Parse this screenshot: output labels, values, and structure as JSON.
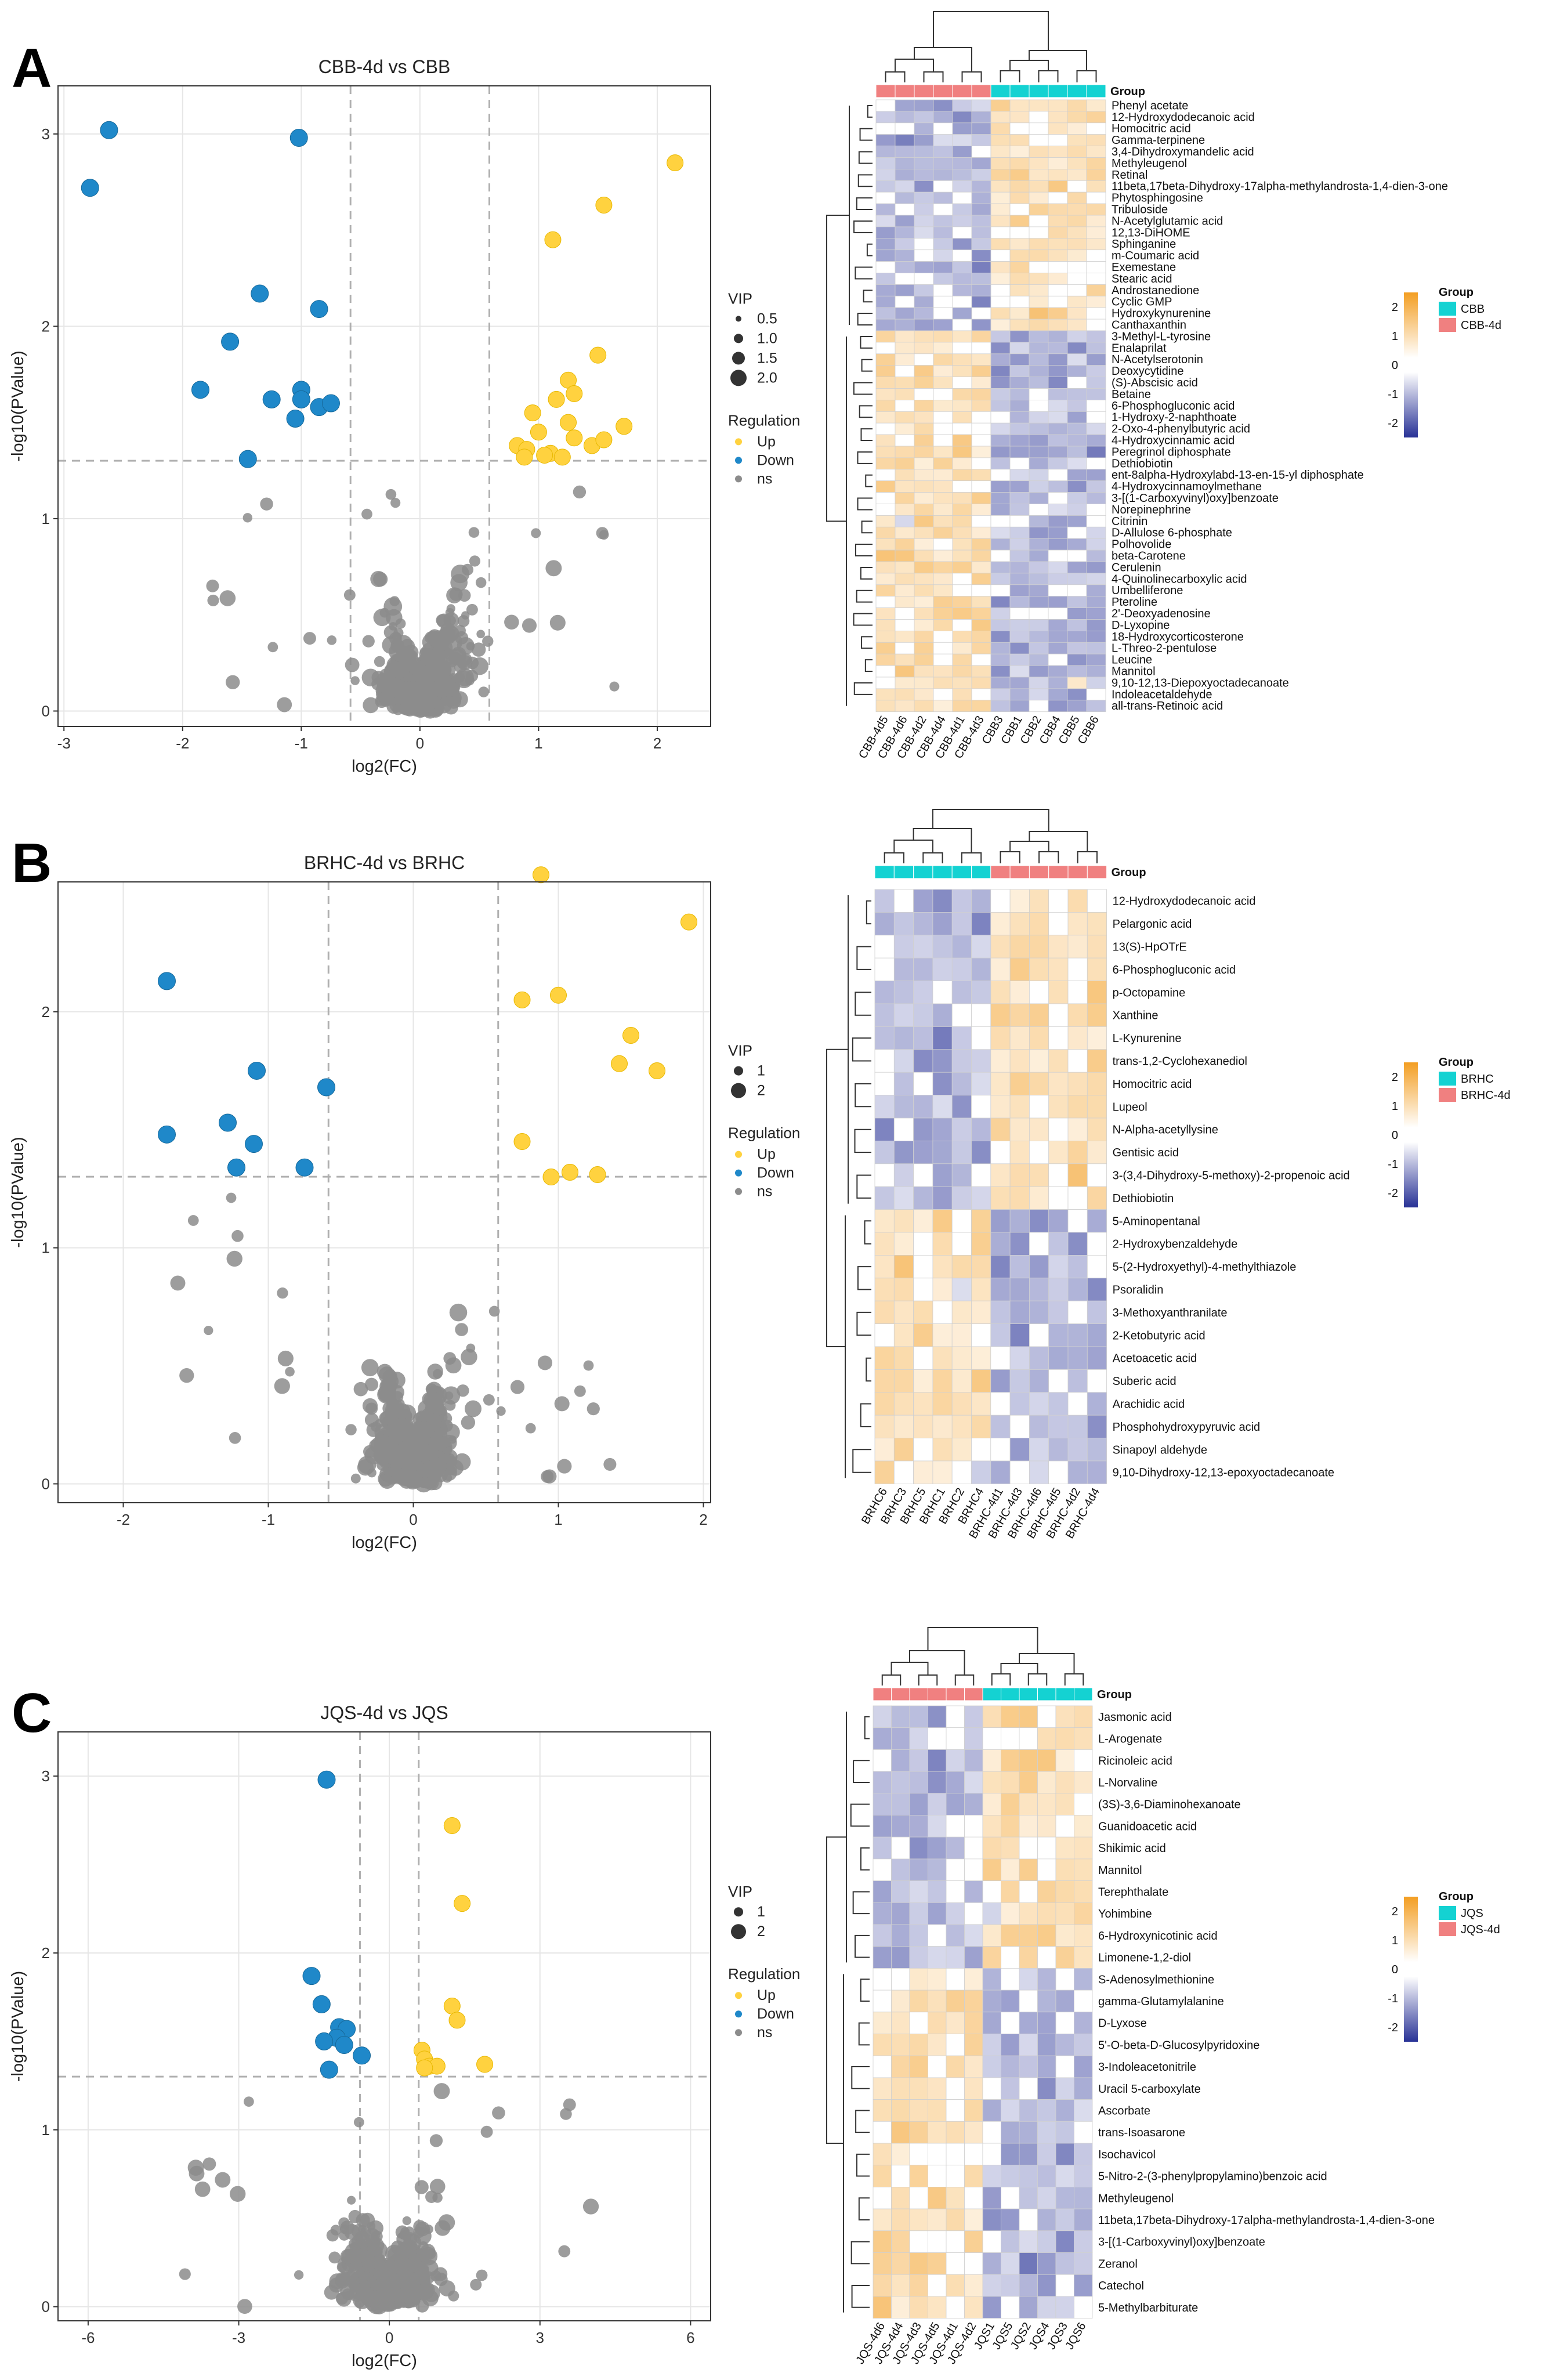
{
  "chart_data": [
    {
      "id": "A",
      "type": "scatter",
      "panel_label": "A",
      "title": "CBB-4d vs CBB",
      "xlabel": "log2(FC)",
      "ylabel": "-log10(PValue)",
      "xlim": [
        -3.05,
        2.45
      ],
      "ylim": [
        -0.08,
        3.25
      ],
      "xticks": [
        -3,
        -2,
        -1,
        0,
        1,
        2
      ],
      "yticks": [
        0,
        1,
        2,
        3
      ],
      "fc_lines": [
        -0.585,
        0.585
      ],
      "p_line": 1.301,
      "vip_legend_title": "VIP",
      "vip_legend": [
        "0.5",
        "1.0",
        "1.5",
        "2.0"
      ],
      "regulation_title": "Regulation",
      "regulation_labels": [
        "Up",
        "Down",
        "ns"
      ],
      "colors": {
        "up": "#FFD23F",
        "down": "#1F88C9",
        "ns": "#8C8C8C"
      },
      "up": [
        [
          0.82,
          1.38
        ],
        [
          0.9,
          1.36
        ],
        [
          1.0,
          1.45
        ],
        [
          1.1,
          1.34
        ],
        [
          1.2,
          1.32
        ],
        [
          1.3,
          1.42
        ],
        [
          1.45,
          1.38
        ],
        [
          1.55,
          1.41
        ],
        [
          0.95,
          1.55
        ],
        [
          1.15,
          1.62
        ],
        [
          1.25,
          1.72
        ],
        [
          1.3,
          1.65
        ],
        [
          1.5,
          1.85
        ],
        [
          1.72,
          1.48
        ],
        [
          1.12,
          2.45
        ],
        [
          1.55,
          2.63
        ],
        [
          2.15,
          2.85
        ],
        [
          1.05,
          1.33
        ],
        [
          1.25,
          1.5
        ],
        [
          0.88,
          1.32
        ]
      ],
      "down": [
        [
          -2.78,
          2.72
        ],
        [
          -2.62,
          3.02
        ],
        [
          -1.02,
          2.98
        ],
        [
          -1.35,
          2.17
        ],
        [
          -0.85,
          2.09
        ],
        [
          -1.6,
          1.92
        ],
        [
          -1.85,
          1.67
        ],
        [
          -1.25,
          1.62
        ],
        [
          -1.0,
          1.67
        ],
        [
          -1.0,
          1.62
        ],
        [
          -0.85,
          1.58
        ],
        [
          -0.75,
          1.6
        ],
        [
          -1.05,
          1.52
        ],
        [
          -1.45,
          1.31
        ]
      ]
    },
    {
      "id": "B",
      "type": "scatter",
      "panel_label": "B",
      "title": "BRHC-4d vs BRHC",
      "xlabel": "log2(FC)",
      "ylabel": "-log10(PValue)",
      "xlim": [
        -2.45,
        2.05
      ],
      "ylim": [
        -0.08,
        2.55
      ],
      "xticks": [
        -2,
        -1,
        0,
        1,
        2
      ],
      "yticks": [
        0,
        1,
        2
      ],
      "fc_lines": [
        -0.585,
        0.585
      ],
      "p_line": 1.301,
      "vip_legend_title": "VIP",
      "vip_legend": [
        "1",
        "2"
      ],
      "regulation_title": "Regulation",
      "regulation_labels": [
        "Up",
        "Down",
        "ns"
      ],
      "colors": {
        "up": "#FFD23F",
        "down": "#1F88C9",
        "ns": "#8C8C8C"
      },
      "up": [
        [
          0.88,
          2.58
        ],
        [
          1.9,
          2.38
        ],
        [
          0.75,
          2.05
        ],
        [
          1.0,
          2.07
        ],
        [
          1.5,
          1.9
        ],
        [
          1.42,
          1.78
        ],
        [
          1.68,
          1.75
        ],
        [
          0.75,
          1.45
        ],
        [
          0.95,
          1.3
        ],
        [
          1.08,
          1.32
        ],
        [
          1.27,
          1.31
        ]
      ],
      "down": [
        [
          -1.7,
          2.13
        ],
        [
          -1.08,
          1.75
        ],
        [
          -0.6,
          1.68
        ],
        [
          -1.28,
          1.53
        ],
        [
          -1.7,
          1.48
        ],
        [
          -1.1,
          1.44
        ],
        [
          -1.22,
          1.34
        ],
        [
          -0.75,
          1.34
        ]
      ]
    },
    {
      "id": "C",
      "type": "scatter",
      "panel_label": "C",
      "title": "JQS-4d vs JQS",
      "xlabel": "log2(FC)",
      "ylabel": "-log10(PValue)",
      "xlim": [
        -6.6,
        6.4
      ],
      "ylim": [
        -0.08,
        3.25
      ],
      "xticks": [
        -6,
        -3,
        0,
        3,
        6
      ],
      "yticks": [
        0,
        1,
        2,
        3
      ],
      "fc_lines": [
        -0.585,
        0.585
      ],
      "p_line": 1.301,
      "vip_legend_title": "VIP",
      "vip_legend": [
        "1",
        "2"
      ],
      "regulation_title": "Regulation",
      "regulation_labels": [
        "Up",
        "Down",
        "ns"
      ],
      "colors": {
        "up": "#FFD23F",
        "down": "#1F88C9",
        "ns": "#8C8C8C"
      },
      "up": [
        [
          1.25,
          2.72
        ],
        [
          1.45,
          2.28
        ],
        [
          1.25,
          1.7
        ],
        [
          1.35,
          1.62
        ],
        [
          0.65,
          1.45
        ],
        [
          0.7,
          1.4
        ],
        [
          0.8,
          1.36
        ],
        [
          0.95,
          1.36
        ],
        [
          1.9,
          1.37
        ],
        [
          0.7,
          1.35
        ]
      ],
      "down": [
        [
          -1.25,
          2.98
        ],
        [
          -1.55,
          1.87
        ],
        [
          -1.35,
          1.71
        ],
        [
          -1.0,
          1.58
        ],
        [
          -0.85,
          1.57
        ],
        [
          -1.05,
          1.52
        ],
        [
          -1.3,
          1.5
        ],
        [
          -0.9,
          1.48
        ],
        [
          -0.55,
          1.42
        ],
        [
          -1.2,
          1.34
        ]
      ]
    }
  ],
  "heatmaps": [
    {
      "id": "A",
      "group_label": "Group",
      "legend_title": "Group",
      "legend_groups": [
        "CBB",
        "CBB-4d"
      ],
      "colorbar_ticks": [
        "2",
        "1",
        "0",
        "-1",
        "-2"
      ],
      "group_colors": {
        "first": "#F08080",
        "second": "#14D2D2"
      },
      "samples": [
        "CBB-4d5",
        "CBB-4d6",
        "CBB-4d2",
        "CBB-4d4",
        "CBB-4d1",
        "CBB-4d3",
        "CBB3",
        "CBB1",
        "CBB2",
        "CBB4",
        "CBB5",
        "CBB6"
      ],
      "sample_groups": [
        1,
        1,
        1,
        1,
        1,
        1,
        2,
        2,
        2,
        2,
        2,
        2
      ],
      "metabolites": [
        "Phenyl acetate",
        "12-Hydroxydodecanoic acid",
        "Homocitric acid",
        "Gamma-terpinene",
        "3,4-Dihydroxymandelic acid",
        "Methyleugenol",
        "Retinal",
        "11beta,17beta-Dihydroxy-17alpha-methylandrosta-1,4-dien-3-one",
        "Phytosphingosine",
        "Tribuloside",
        "N-Acetylglutamic acid",
        "12,13-DiHOME",
        "Sphinganine",
        "m-Coumaric acid",
        "Exemestane",
        "Stearic acid",
        "Androstanedione",
        "Cyclic GMP",
        "Hydroxykynurenine",
        "Canthaxanthin",
        "3-Methyl-L-tyrosine",
        "Enalaprilat",
        "N-Acetylserotonin",
        "Deoxycytidine",
        "(S)-Abscisic acid",
        "Betaine",
        "6-Phosphogluconic acid",
        "1-Hydroxy-2-naphthoate",
        "2-Oxo-4-phenylbutyric acid",
        "4-Hydroxycinnamic acid",
        "Peregrinol diphosphate",
        "Dethiobiotin",
        "ent-8alpha-Hydroxylabd-13-en-15-yl diphosphate",
        "4-Hydroxycinnamoylmethane",
        "3-[(1-Carboxyvinyl)oxy]benzoate",
        "Norepinephrine",
        "Citrinin",
        "D-Allulose 6-phosphate",
        "Polhovolide",
        "beta-Carotene",
        "Cerulenin",
        "4-Quinolinecarboxylic acid",
        "Umbelliferone",
        "Pteroline",
        "2'-Deoxyadenosine",
        "D-Lyxopine",
        "18-Hydroxycorticosterone",
        "L-Threo-2-pentulose",
        "Leucine",
        "Mannitol",
        "9,10-12,13-Diepoxyoctadecanoate",
        "Indoleacetaldehyde",
        "all-trans-Retinoic acid"
      ],
      "split": 20
    },
    {
      "id": "B",
      "group_label": "Group",
      "legend_title": "Group",
      "legend_groups": [
        "BRHC",
        "BRHC-4d"
      ],
      "colorbar_ticks": [
        "2",
        "1",
        "0",
        "-1",
        "-2"
      ],
      "group_colors": {
        "first": "#14D2D2",
        "second": "#F08080"
      },
      "samples": [
        "BRHC6",
        "BRHC3",
        "BRHC5",
        "BRHC1",
        "BRHC2",
        "BRHC4",
        "BRHC-4d1",
        "BRHC-4d3",
        "BRHC-4d6",
        "BRHC-4d5",
        "BRHC-4d2",
        "BRHC-4d4"
      ],
      "sample_groups": [
        1,
        1,
        1,
        1,
        1,
        1,
        2,
        2,
        2,
        2,
        2,
        2
      ],
      "metabolites": [
        "12-Hydroxydodecanoic acid",
        "Pelargonic acid",
        "13(S)-HpOTrE",
        "6-Phosphogluconic acid",
        "p-Octopamine",
        "Xanthine",
        "L-Kynurenine",
        "trans-1,2-Cyclohexanediol",
        "Homocitric acid",
        "Lupeol",
        "N-Alpha-acetyllysine",
        "Gentisic acid",
        "3-(3,4-Dihydroxy-5-methoxy)-2-propenoic acid",
        "Dethiobiotin",
        "5-Aminopentanal",
        "2-Hydroxybenzaldehyde",
        "5-(2-Hydroxyethyl)-4-methylthiazole",
        "Psoralidin",
        "3-Methoxyanthranilate",
        "2-Ketobutyric acid",
        "Acetoacetic acid",
        "Suberic acid",
        "Arachidic acid",
        "Phosphohydroxypyruvic acid",
        "Sinapoyl aldehyde",
        "9,10-Dihydroxy-12,13-epoxyoctadecanoate"
      ],
      "split": 14
    },
    {
      "id": "C",
      "group_label": "Group",
      "legend_title": "Group",
      "legend_groups": [
        "JQS",
        "JQS-4d"
      ],
      "colorbar_ticks": [
        "2",
        "1",
        "0",
        "-1",
        "-2"
      ],
      "group_colors": {
        "first": "#F08080",
        "second": "#14D2D2"
      },
      "samples": [
        "JQS-4d6",
        "JQS-4d4",
        "JQS-4d3",
        "JQS-4d5",
        "JQS-4d1",
        "JQS-4d2",
        "JQS1",
        "JQS5",
        "JQS2",
        "JQS4",
        "JQS3",
        "JQS6"
      ],
      "sample_groups": [
        1,
        1,
        1,
        1,
        1,
        1,
        2,
        2,
        2,
        2,
        2,
        2
      ],
      "metabolites": [
        "Jasmonic acid",
        "L-Arogenate",
        "Ricinoleic acid",
        "L-Norvaline",
        "(3S)-3,6-Diaminohexanoate",
        "Guanidoacetic acid",
        "Shikimic acid",
        "Mannitol",
        "Terephthalate",
        "Yohimbine",
        "6-Hydroxynicotinic acid",
        "Limonene-1,2-diol",
        "S-Adenosylmethionine",
        "gamma-Glutamylalanine",
        "D-Lyxose",
        "5'-O-beta-D-Glucosylpyridoxine",
        "3-Indoleacetonitrile",
        "Uracil 5-carboxylate",
        "Ascorbate",
        "trans-Isoasarone",
        "Isochavicol",
        "5-Nitro-2-(3-phenylpropylamino)benzoic acid",
        "Methyleugenol",
        "11beta,17beta-Dihydroxy-17alpha-methylandrosta-1,4-dien-3-one",
        "3-[(1-Carboxyvinyl)oxy]benzoate",
        "Zeranol",
        "Catechol",
        "5-Methylbarbiturate"
      ],
      "split": 12
    }
  ]
}
